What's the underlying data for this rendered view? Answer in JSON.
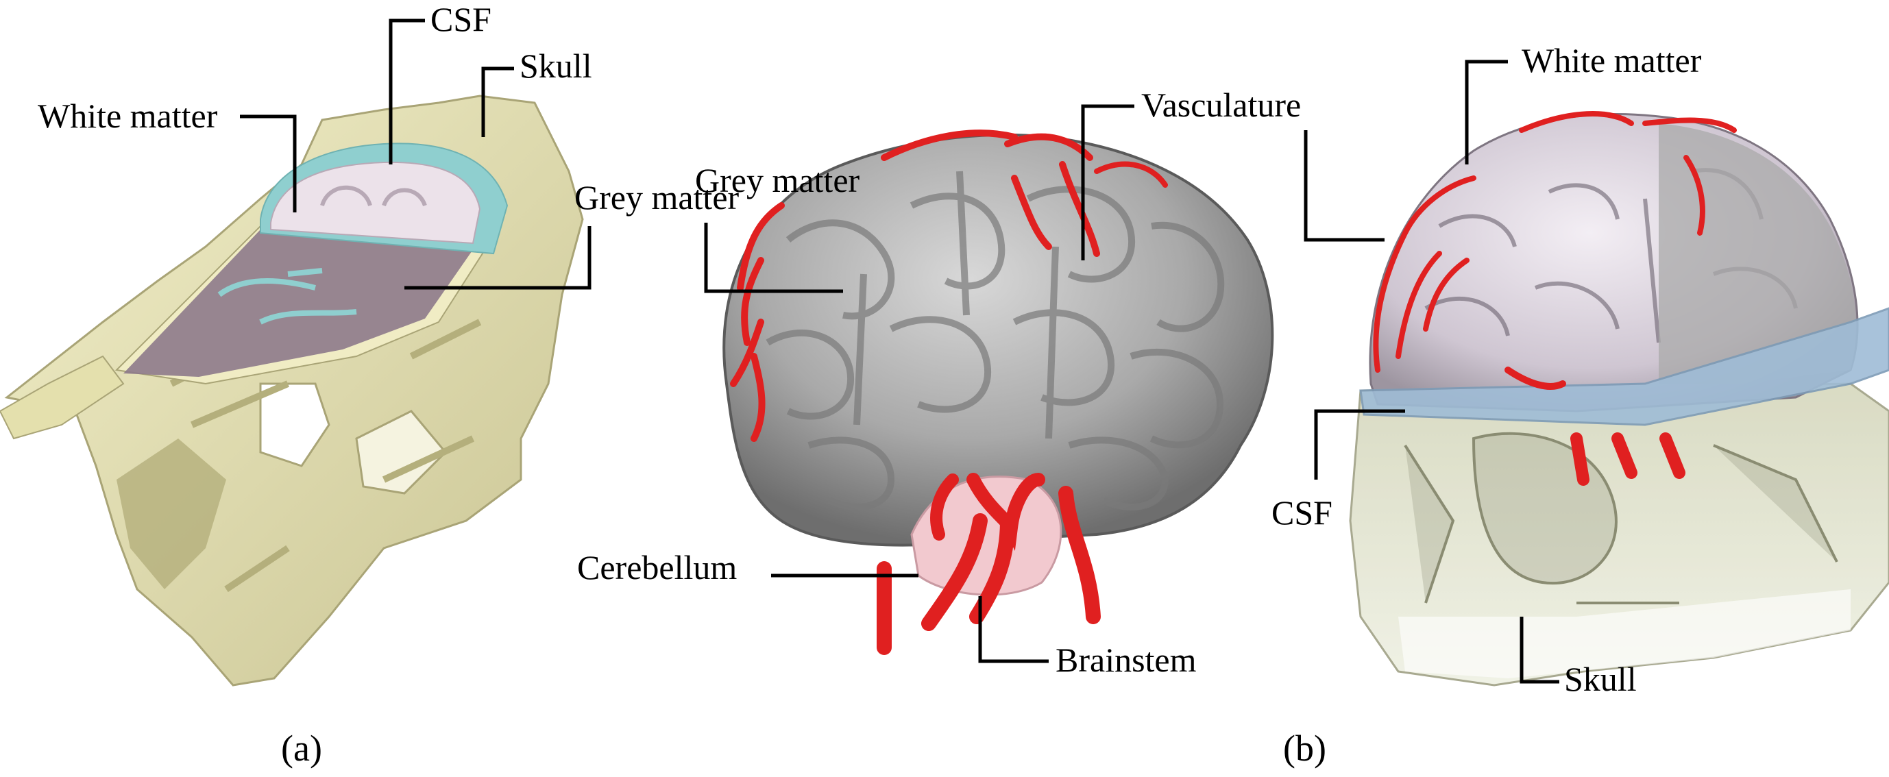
{
  "panel_a": {
    "caption": "(a)",
    "labels": {
      "csf": "CSF",
      "skull": "Skull",
      "white_matter": "White matter",
      "grey_matter": "Grey matter"
    }
  },
  "panel_b": {
    "caption": "(b)",
    "labels": {
      "vasculature": "Vasculature",
      "grey_matter": "Grey matter",
      "cerebellum": "Cerebellum",
      "brainstem": "Brainstem",
      "white_matter": "White matter",
      "csf": "CSF",
      "skull": "Skull"
    }
  },
  "colors": {
    "skull": "#e9e5b6",
    "skull_shadow": "#b9b483",
    "csf": "#8fcfcf",
    "white_matter": "#ece2ea",
    "grey_matter_slice": "#8d7a8b",
    "brain_surface": "#a9a9a9",
    "vessels": "#e02020",
    "cerebellum": "#f2c9cf",
    "csf_band": "#9fbcd6",
    "skull_transparent": "#c8c9a9"
  }
}
